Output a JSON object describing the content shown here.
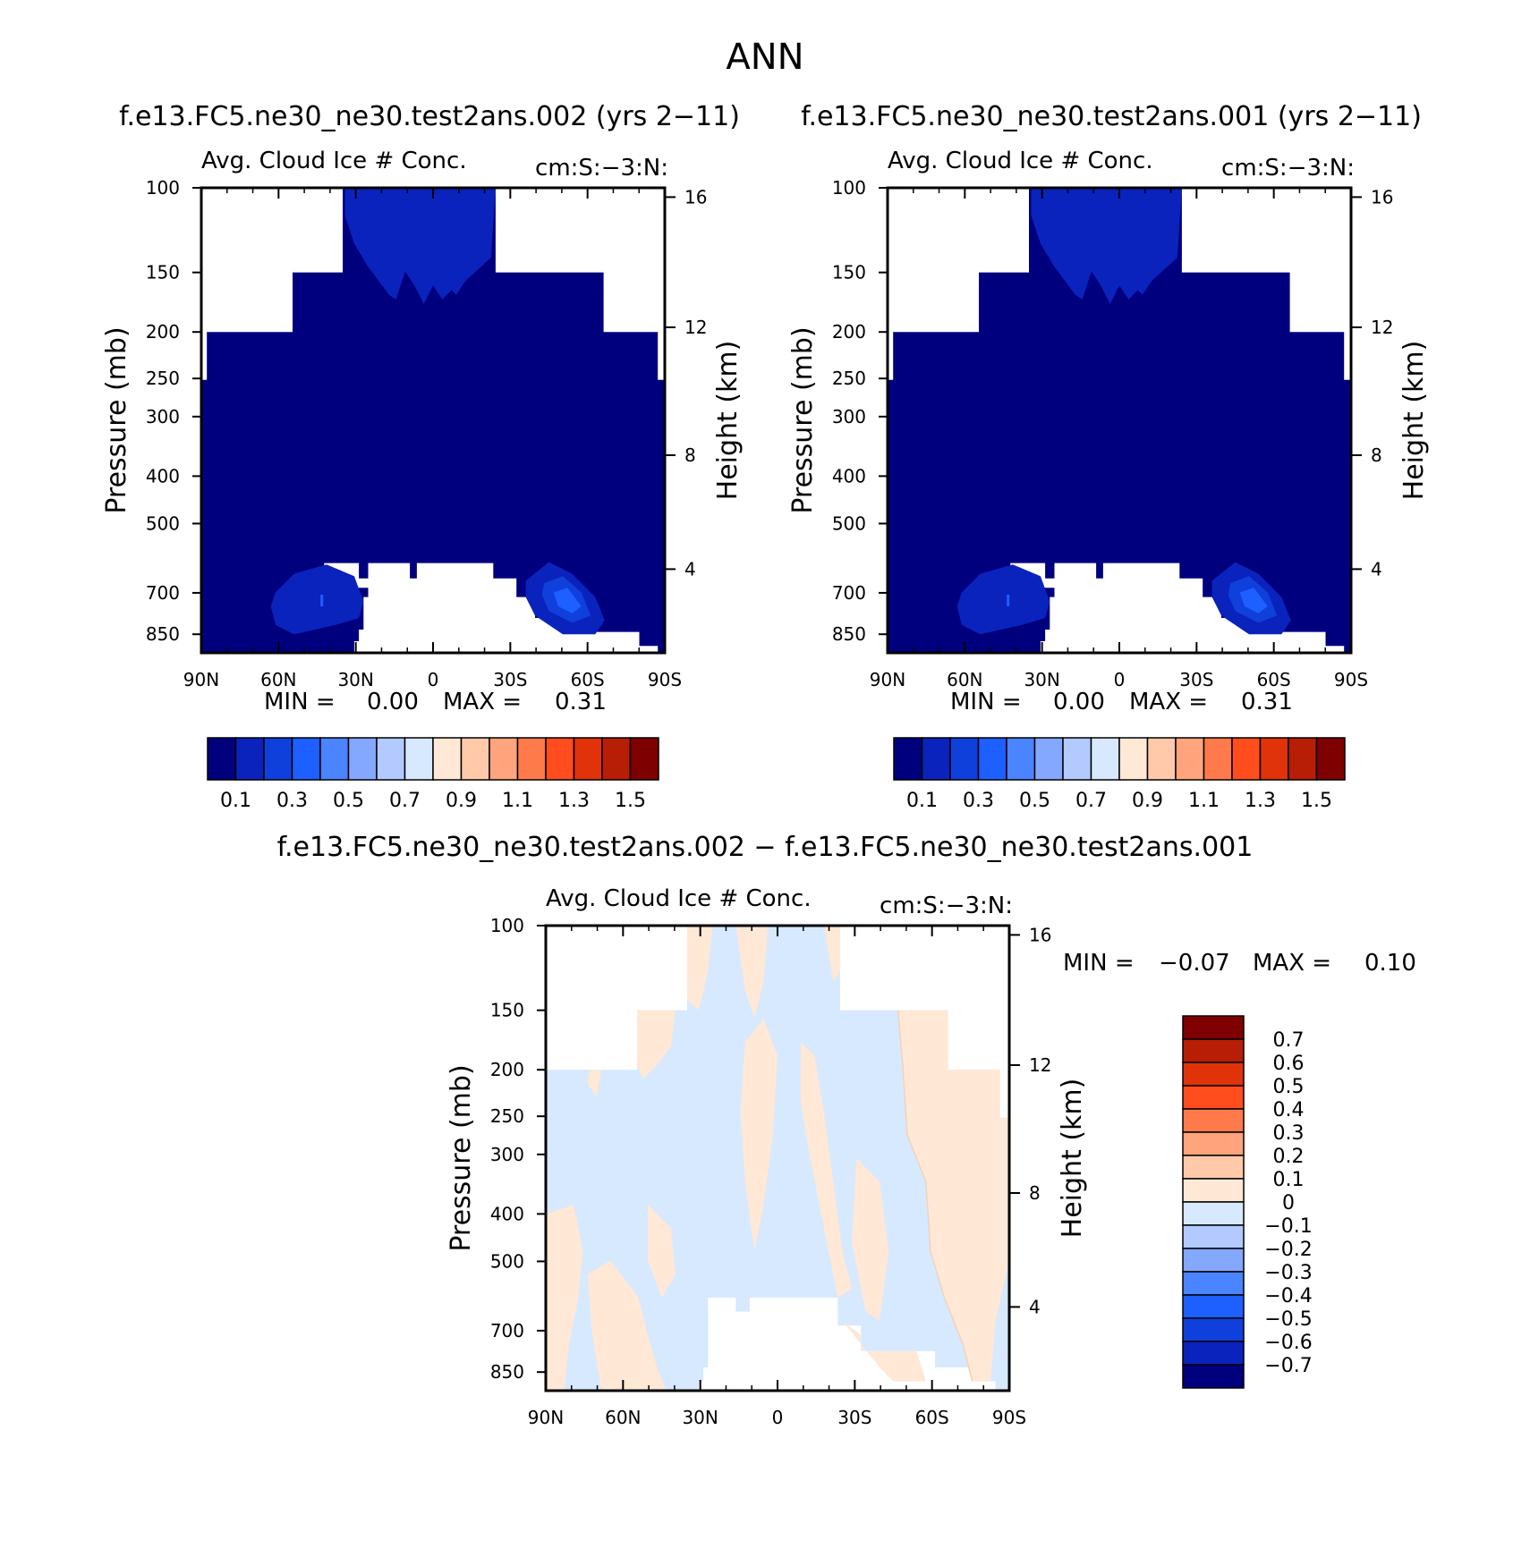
{
  "figure": {
    "title": "ANN",
    "diff_title": "f.e13.FC5.ne30_ne30.test2ans.002 − f.e13.FC5.ne30_ne30.test2ans.001"
  },
  "chart_data": [
    {
      "type": "heatmap",
      "case_title": "f.e13.FC5.ne30_ne30.test2ans.002 (yrs 2−11)",
      "title": "Avg. Cloud Ice # Conc.",
      "units": "cm:S:−3:N:",
      "ylabel": "Pressure (mb)",
      "ylabel_right": "Height (km)",
      "x_ticks": [
        "90N",
        "60N",
        "30N",
        "0",
        "30S",
        "60S",
        "90S"
      ],
      "y_ticks": [
        "100",
        "150",
        "200",
        "250",
        "300",
        "400",
        "500",
        "700",
        "850"
      ],
      "y_ticks_right": [
        "16",
        "12",
        "8",
        "4"
      ],
      "min_label": "MIN =",
      "min_value": "0.00",
      "max_label": "MAX =",
      "max_value": "0.31",
      "levels": [
        "0.1",
        "0.3",
        "0.5",
        "0.7",
        "0.9",
        "1.1",
        "1.3",
        "1.5"
      ],
      "colors": [
        "#00007f",
        "#0a23bc",
        "#0f40dc",
        "#1e5fff",
        "#4a84ff",
        "#85a8ff",
        "#b2caff",
        "#d6e9ff",
        "#ffe8d6",
        "#ffc9aa",
        "#ffa47c",
        "#ff7a4a",
        "#ff4d1d",
        "#e0330a",
        "#b81e05",
        "#7f0000"
      ]
    },
    {
      "type": "heatmap",
      "case_title": "f.e13.FC5.ne30_ne30.test2ans.001 (yrs 2−11)",
      "title": "Avg. Cloud Ice # Conc.",
      "units": "cm:S:−3:N:",
      "ylabel": "Pressure (mb)",
      "ylabel_right": "Height (km)",
      "x_ticks": [
        "90N",
        "60N",
        "30N",
        "0",
        "30S",
        "60S",
        "90S"
      ],
      "y_ticks": [
        "100",
        "150",
        "200",
        "250",
        "300",
        "400",
        "500",
        "700",
        "850"
      ],
      "y_ticks_right": [
        "16",
        "12",
        "8",
        "4"
      ],
      "min_label": "MIN =",
      "min_value": "0.00",
      "max_label": "MAX =",
      "max_value": "0.31",
      "levels": [
        "0.1",
        "0.3",
        "0.5",
        "0.7",
        "0.9",
        "1.1",
        "1.3",
        "1.5"
      ],
      "colors": [
        "#00007f",
        "#0a23bc",
        "#0f40dc",
        "#1e5fff",
        "#4a84ff",
        "#85a8ff",
        "#b2caff",
        "#d6e9ff",
        "#ffe8d6",
        "#ffc9aa",
        "#ffa47c",
        "#ff7a4a",
        "#ff4d1d",
        "#e0330a",
        "#b81e05",
        "#7f0000"
      ]
    },
    {
      "type": "heatmap",
      "title": "Avg. Cloud Ice # Conc.",
      "units": "cm:S:−3:N:",
      "ylabel": "Pressure (mb)",
      "ylabel_right": "Height (km)",
      "x_ticks": [
        "90N",
        "60N",
        "30N",
        "0",
        "30S",
        "60S",
        "90S"
      ],
      "y_ticks": [
        "100",
        "150",
        "200",
        "250",
        "300",
        "400",
        "500",
        "700",
        "850"
      ],
      "y_ticks_right": [
        "16",
        "12",
        "8",
        "4"
      ],
      "min_label": "MIN =",
      "min_value": "−0.07",
      "max_label": "MAX =",
      "max_value": "0.10",
      "levels": [
        "0.7",
        "0.6",
        "0.5",
        "0.4",
        "0.3",
        "0.2",
        "0.1",
        "0",
        "−0.1",
        "−0.2",
        "−0.3",
        "−0.4",
        "−0.5",
        "−0.6",
        "−0.7"
      ],
      "colors": [
        "#7f0000",
        "#b81e05",
        "#e0330a",
        "#ff4d1d",
        "#ff7a4a",
        "#ffa47c",
        "#ffc9aa",
        "#ffe8d6",
        "#d6e9ff",
        "#b2caff",
        "#85a8ff",
        "#4a84ff",
        "#1e5fff",
        "#0f40dc",
        "#0a23bc",
        "#00007f"
      ]
    }
  ]
}
